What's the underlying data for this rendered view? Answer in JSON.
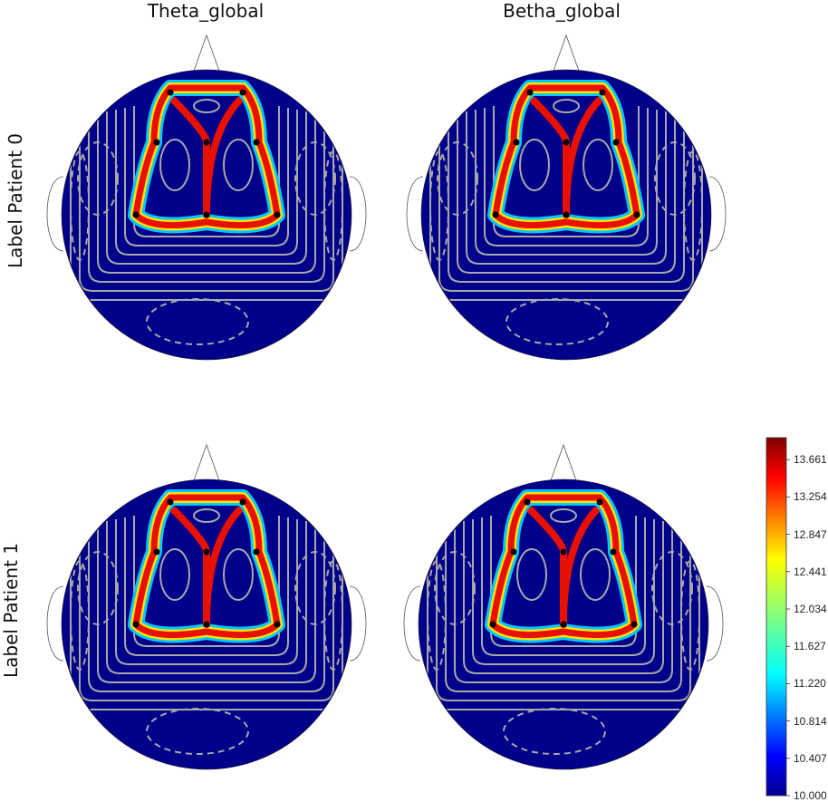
{
  "columns": [
    "Theta_global",
    "Betha_global"
  ],
  "rows": [
    "Label Patient 0",
    "Label Patient 1"
  ],
  "colorbar": {
    "ticks": [
      "13.661",
      "13.254",
      "12.847",
      "12.441",
      "12.034",
      "11.627",
      "11.220",
      "10.814",
      "10.407",
      "10.000"
    ],
    "min": 10.0,
    "max": 13.9,
    "colormap": "jet"
  },
  "chart_data": {
    "type": "heatmap",
    "subtype": "eeg-topomap",
    "columns": [
      "Theta_global",
      "Betha_global"
    ],
    "rows": [
      "Label Patient 0",
      "Label Patient 1"
    ],
    "value_range": [
      10.0,
      13.9
    ],
    "colorbar_ticks": [
      13.661,
      13.254,
      12.847,
      12.441,
      12.034,
      11.627,
      11.22,
      10.814,
      10.407,
      10.0
    ],
    "electrodes_per_map": 8,
    "contours": true
  },
  "colors": {
    "background_field": "#00008a",
    "contour": "#a8a8a8",
    "electrode": "#000000",
    "outline": "#555555"
  }
}
